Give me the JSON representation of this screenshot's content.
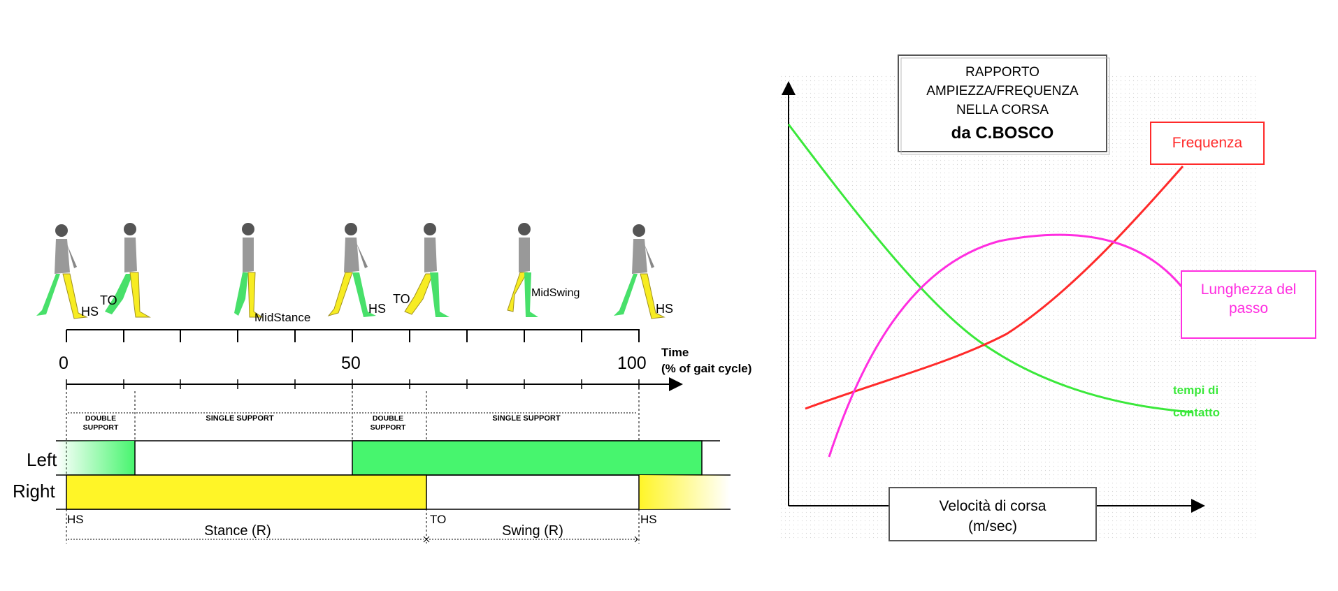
{
  "gait": {
    "phase_labels": {
      "hs1": "HS",
      "to1": "TO",
      "midstance": "MidStance",
      "hs2": "HS",
      "to2": "TO",
      "midswing": "MidSwing",
      "hs3": "HS"
    },
    "axis": {
      "ticks": [
        "0",
        "50",
        "100"
      ],
      "title_line1": "Time",
      "title_line2": "(% of gait cycle)"
    },
    "support": {
      "double1": [
        "DOUBLE",
        "SUPPORT"
      ],
      "single1": "SINGLE SUPPORT",
      "double2": [
        "DOUBLE",
        "SUPPORT"
      ],
      "single2": "SINGLE SUPPORT"
    },
    "rows": {
      "left": "Left",
      "right": "Right"
    },
    "bottom": {
      "hs_left": "HS",
      "to": "TO",
      "hs_right": "HS",
      "stance": "Stance (R)",
      "swing": "Swing (R)"
    },
    "colors": {
      "left_bar": "#47f56e",
      "right_bar": "#fff527",
      "figure_green": "#48e06a",
      "figure_yellow": "#f7ec22"
    }
  },
  "bosco": {
    "title": [
      "RAPPORTO",
      "AMPIEZZA/FREQUENZA",
      "NELLA CORSA",
      "da C.BOSCO"
    ],
    "xlabel": [
      "Velocità di corsa",
      "(m/sec)"
    ],
    "legend": {
      "frequenza": "Frequenza",
      "lunghezza": [
        "Lunghezza del",
        "passo"
      ],
      "tempi": [
        "tempi di",
        "contatto"
      ]
    },
    "colors": {
      "frequenza": "#ff2a2a",
      "lunghezza": "#ff2ee0",
      "tempi": "#3ae83a"
    }
  }
}
